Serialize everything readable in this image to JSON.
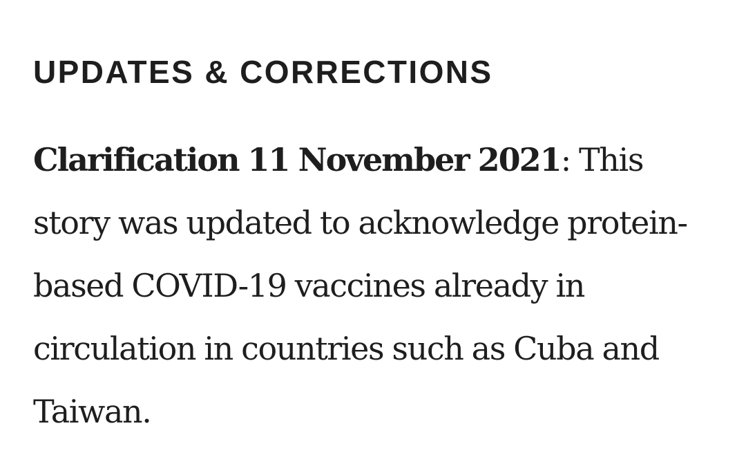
{
  "updates": {
    "heading": "UPDATES & CORRECTIONS",
    "clarification_label": "Clarification 11 November 2021",
    "separator": ":",
    "text": " This story was updated to acknowledge protein-based COVID-19 vaccines already in circulation in countries such as Cuba and Taiwan."
  }
}
